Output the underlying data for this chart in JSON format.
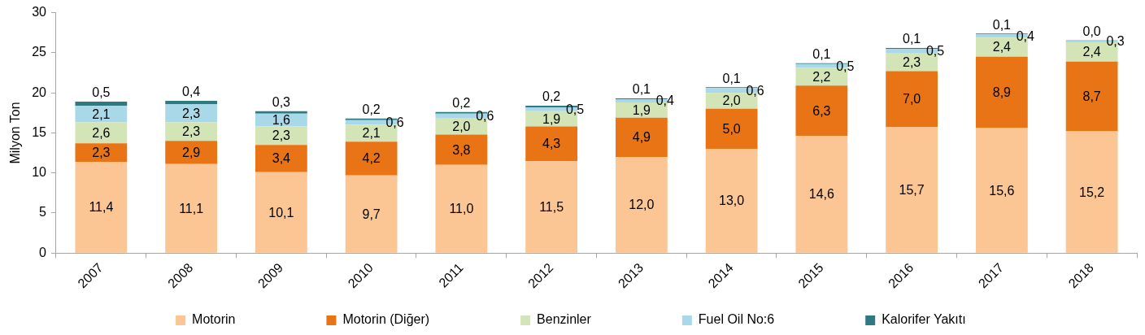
{
  "chart_data": {
    "type": "bar",
    "stacked": true,
    "ylabel": "Milyon Ton",
    "legend": "bottom",
    "categories": [
      "2007",
      "2008",
      "2009",
      "2010",
      "2011",
      "2012",
      "2013",
      "2014",
      "2015",
      "2016",
      "2017",
      "2018"
    ],
    "ylim": [
      0,
      30
    ],
    "yticks": [
      0,
      5,
      10,
      15,
      20,
      25,
      30
    ],
    "series": [
      {
        "name": "Motorin",
        "color": "#fbc594",
        "values": [
          11.4,
          11.1,
          10.1,
          9.7,
          11.0,
          11.5,
          12.0,
          13.0,
          14.6,
          15.7,
          15.6,
          15.2
        ],
        "value_labels": [
          "11,4",
          "11,1",
          "10,1",
          "9,7",
          "11,0",
          "11,5",
          "12,0",
          "13,0",
          "14,6",
          "15,7",
          "15,6",
          "15,2"
        ]
      },
      {
        "name": "Motorin (Diğer)",
        "color": "#e97415",
        "values": [
          2.3,
          2.9,
          3.4,
          4.2,
          3.8,
          4.3,
          4.9,
          5.0,
          6.3,
          7.0,
          8.9,
          8.7
        ],
        "value_labels": [
          "2,3",
          "2,9",
          "3,4",
          "4,2",
          "3,8",
          "4,3",
          "4,9",
          "5,0",
          "6,3",
          "7,0",
          "8,9",
          "8,7"
        ]
      },
      {
        "name": "Benzinler",
        "color": "#d3e4b6",
        "values": [
          2.6,
          2.3,
          2.3,
          2.1,
          2.0,
          1.9,
          1.9,
          2.0,
          2.2,
          2.3,
          2.4,
          2.4
        ],
        "value_labels": [
          "2,6",
          "2,3",
          "2,3",
          "2,1",
          "2,0",
          "1,9",
          "1,9",
          "2,0",
          "2,2",
          "2,3",
          "2,4",
          "2,4"
        ]
      },
      {
        "name": "Fuel Oil No:6",
        "color": "#a9d9e8",
        "values": [
          2.1,
          2.3,
          1.6,
          0.6,
          0.6,
          0.5,
          0.4,
          0.6,
          0.5,
          0.5,
          0.4,
          0.3
        ],
        "value_labels": [
          "2,1",
          "2,3",
          "1,6",
          "0,6",
          "0,6",
          "0,5",
          "0,4",
          "0,6",
          "0,5",
          "0,5",
          "0,4",
          "0,3"
        ]
      },
      {
        "name": "Kalorifer Yakıtı",
        "color": "#2f7a80",
        "values": [
          0.5,
          0.4,
          0.3,
          0.2,
          0.2,
          0.2,
          0.1,
          0.1,
          0.1,
          0.1,
          0.1,
          0.0
        ],
        "value_labels": [
          "0,5",
          "0,4",
          "0,3",
          "0,2",
          "0,2",
          "0,2",
          "0,1",
          "0,1",
          "0,1",
          "0,1",
          "0,1",
          "0,0"
        ]
      }
    ]
  }
}
